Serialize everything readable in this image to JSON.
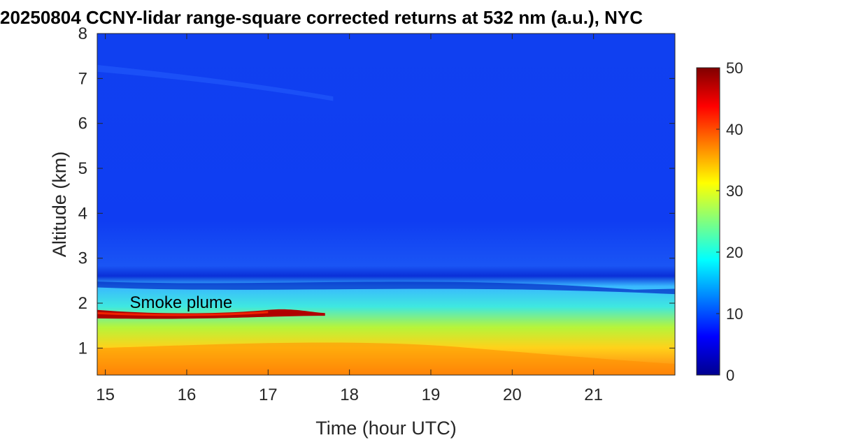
{
  "chart_data": {
    "type": "heatmap",
    "title": "20250804 CCNY-lidar range-square corrected returns at 532 nm (a.u.), NYC",
    "xlabel": "Time (hour UTC)",
    "ylabel": "Altitude (km)",
    "xlim": [
      14.9,
      22.0
    ],
    "ylim": [
      0.4,
      8.0
    ],
    "x_ticks": [
      15,
      16,
      17,
      18,
      19,
      20,
      21
    ],
    "y_ticks": [
      1,
      2,
      3,
      4,
      5,
      6,
      7,
      8
    ],
    "colorbar": {
      "min": 0,
      "max": 50,
      "ticks": [
        0,
        10,
        20,
        30,
        40,
        50
      ],
      "colormap": "jet"
    },
    "annotations": [
      {
        "text": "Smoke plume",
        "x": 15.3,
        "y": 2.0
      }
    ],
    "layers": [
      {
        "feature": "background free troposphere",
        "alt_range_km": [
          3.0,
          8.0
        ],
        "value": 5
      },
      {
        "feature": "residual/aerosol layer top",
        "alt_km_start": 2.45,
        "alt_km_end": 2.35,
        "value": 12
      },
      {
        "feature": "smoke plume",
        "time_range": [
          14.9,
          17.5
        ],
        "alt_km": [
          1.95,
          1.6
        ],
        "value": 50
      },
      {
        "feature": "boundary layer",
        "alt_range_km": [
          0.4,
          1.6
        ],
        "value": 33
      }
    ]
  }
}
